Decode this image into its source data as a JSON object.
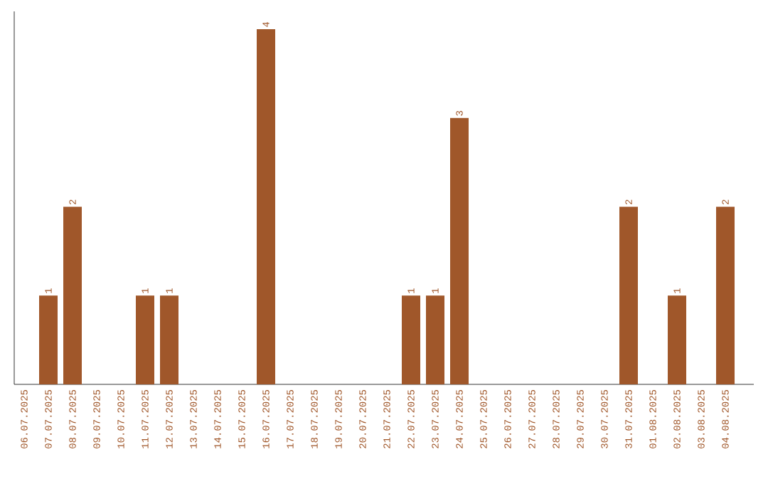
{
  "chart_data": {
    "type": "bar",
    "categories": [
      "06.07.2025",
      "07.07.2025",
      "08.07.2025",
      "09.07.2025",
      "10.07.2025",
      "11.07.2025",
      "12.07.2025",
      "13.07.2025",
      "14.07.2025",
      "15.07.2025",
      "16.07.2025",
      "17.07.2025",
      "18.07.2025",
      "19.07.2025",
      "20.07.2025",
      "21.07.2025",
      "22.07.2025",
      "23.07.2025",
      "24.07.2025",
      "25.07.2025",
      "26.07.2025",
      "27.07.2025",
      "28.07.2025",
      "29.07.2025",
      "30.07.2025",
      "31.07.2025",
      "01.08.2025",
      "02.08.2025",
      "03.08.2025",
      "04.08.2025"
    ],
    "values": [
      0,
      1,
      2,
      0,
      0,
      1,
      1,
      0,
      0,
      0,
      4,
      0,
      0,
      0,
      0,
      0,
      1,
      1,
      3,
      0,
      0,
      0,
      0,
      0,
      0,
      2,
      0,
      1,
      0,
      2
    ],
    "value_labels": [
      null,
      "1",
      "2",
      null,
      null,
      "1",
      "1",
      null,
      null,
      null,
      "4",
      null,
      null,
      null,
      null,
      null,
      "1",
      "1",
      "3",
      null,
      null,
      null,
      null,
      null,
      null,
      "2",
      null,
      "1",
      null,
      "2"
    ],
    "color": "#a0572a",
    "ylim": [
      0,
      4.2
    ],
    "tick_labels": "x"
  }
}
